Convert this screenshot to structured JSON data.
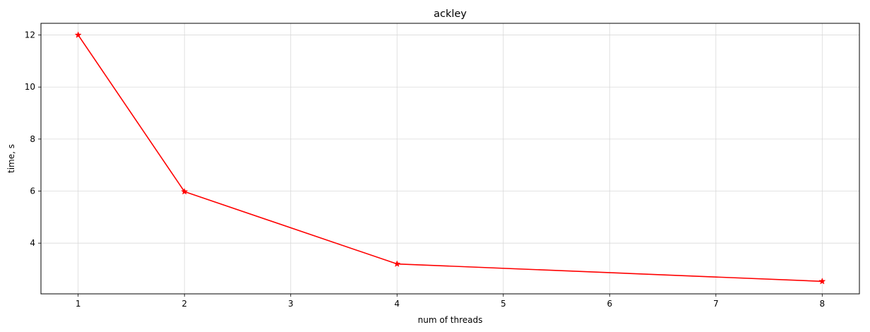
{
  "chart_data": {
    "type": "line",
    "title": "ackley",
    "xlabel": "num of threads",
    "ylabel": "time, s",
    "x": [
      1,
      2,
      4,
      8
    ],
    "series": [
      {
        "values": [
          12.0,
          5.98,
          3.2,
          2.53
        ],
        "color": "#ff0000",
        "marker": "star"
      }
    ],
    "xlim": [
      0.65,
      8.35
    ],
    "ylim": [
      2.05,
      12.45
    ],
    "xticks": [
      1,
      2,
      3,
      4,
      5,
      6,
      7,
      8
    ],
    "yticks": [
      4,
      6,
      8,
      10,
      12
    ],
    "grid": true
  }
}
